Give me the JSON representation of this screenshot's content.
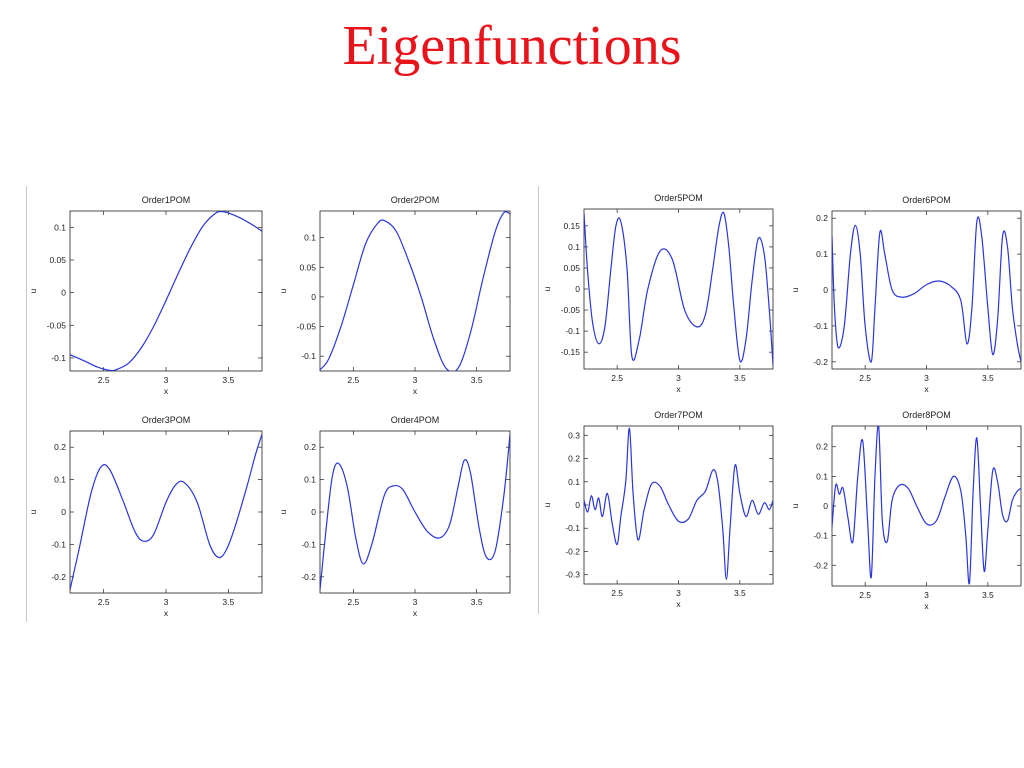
{
  "slide": {
    "title": "Eigenfunctions"
  },
  "chart_data": [
    {
      "type": "line",
      "title": "Order1POM",
      "xlabel": "x",
      "ylabel": "u",
      "xlim": [
        2.23,
        3.77
      ],
      "ylim": [
        -0.12,
        0.125
      ],
      "xticks": [
        2.5,
        3,
        3.5
      ],
      "xtick_labels": [
        "2.5",
        "3",
        "3.5"
      ],
      "yticks": [
        0.1,
        0.05,
        0,
        -0.05,
        -0.1
      ],
      "ytick_labels": [
        "0.1",
        "0.05",
        "0",
        "-0.05",
        "-0.1"
      ],
      "series": [
        {
          "color": "#2b36d9",
          "x": [
            2.23,
            2.35,
            2.45,
            2.55,
            2.6,
            2.7,
            2.8,
            2.9,
            3.0,
            3.1,
            3.2,
            3.3,
            3.4,
            3.45,
            3.5,
            3.6,
            3.7,
            3.77
          ],
          "y": [
            -0.095,
            -0.105,
            -0.114,
            -0.119,
            -0.118,
            -0.108,
            -0.085,
            -0.052,
            -0.012,
            0.03,
            0.07,
            0.103,
            0.122,
            0.124,
            0.122,
            0.114,
            0.103,
            0.094
          ]
        }
      ]
    },
    {
      "type": "line",
      "title": "Order2POM",
      "xlabel": "x",
      "ylabel": "u",
      "xlim": [
        2.23,
        3.77
      ],
      "ylim": [
        -0.125,
        0.145
      ],
      "xticks": [
        2.5,
        3,
        3.5
      ],
      "xtick_labels": [
        "2.5",
        "3",
        "3.5"
      ],
      "yticks": [
        0.1,
        0.05,
        0,
        -0.05,
        -0.1
      ],
      "ytick_labels": [
        "0.1",
        "0.05",
        "0",
        "-0.05",
        "-0.1"
      ],
      "series": [
        {
          "color": "#2b36d9",
          "x": [
            2.23,
            2.3,
            2.4,
            2.5,
            2.6,
            2.7,
            2.76,
            2.85,
            2.95,
            3.05,
            3.15,
            3.25,
            3.35,
            3.45,
            3.55,
            3.65,
            3.72,
            3.77
          ],
          "y": [
            -0.123,
            -0.105,
            -0.05,
            0.02,
            0.09,
            0.125,
            0.128,
            0.11,
            0.06,
            0.0,
            -0.07,
            -0.12,
            -0.12,
            -0.06,
            0.03,
            0.11,
            0.142,
            0.14
          ]
        }
      ]
    },
    {
      "type": "line",
      "title": "Order3POM",
      "xlabel": "x",
      "ylabel": "u",
      "xlim": [
        2.23,
        3.77
      ],
      "ylim": [
        -0.25,
        0.25
      ],
      "xticks": [
        2.5,
        3,
        3.5
      ],
      "xtick_labels": [
        "2.5",
        "3",
        "3.5"
      ],
      "yticks": [
        0.2,
        0.1,
        0,
        -0.1,
        -0.2
      ],
      "ytick_labels": [
        "0.2",
        "0.1",
        "0",
        "-0.1",
        "-0.2"
      ],
      "series": [
        {
          "color": "#2b36d9",
          "x": [
            2.23,
            2.3,
            2.4,
            2.48,
            2.55,
            2.65,
            2.75,
            2.82,
            2.9,
            3.0,
            3.08,
            3.15,
            3.25,
            3.35,
            3.42,
            3.48,
            3.55,
            3.65,
            3.72,
            3.77
          ],
          "y": [
            -0.24,
            -0.12,
            0.06,
            0.14,
            0.13,
            0.04,
            -0.06,
            -0.09,
            -0.07,
            0.03,
            0.085,
            0.09,
            0.03,
            -0.1,
            -0.14,
            -0.12,
            -0.05,
            0.08,
            0.18,
            0.24
          ]
        }
      ]
    },
    {
      "type": "line",
      "title": "Order4POM",
      "xlabel": "x",
      "ylabel": "u",
      "xlim": [
        2.23,
        3.77
      ],
      "ylim": [
        -0.25,
        0.25
      ],
      "xticks": [
        2.5,
        3,
        3.5
      ],
      "xtick_labels": [
        "2.5",
        "3",
        "3.5"
      ],
      "yticks": [
        0.2,
        0.1,
        0,
        -0.1,
        -0.2
      ],
      "ytick_labels": [
        "0.2",
        "0.1",
        "0",
        "-0.1",
        "-0.2"
      ],
      "series": [
        {
          "color": "#2b36d9",
          "x": [
            2.23,
            2.28,
            2.33,
            2.38,
            2.45,
            2.52,
            2.58,
            2.65,
            2.75,
            2.82,
            2.9,
            3.0,
            3.1,
            3.2,
            3.28,
            3.35,
            3.4,
            3.45,
            3.52,
            3.58,
            3.65,
            3.72,
            3.77
          ],
          "y": [
            -0.24,
            -0.05,
            0.11,
            0.15,
            0.08,
            -0.08,
            -0.16,
            -0.1,
            0.05,
            0.08,
            0.07,
            0.0,
            -0.06,
            -0.08,
            -0.04,
            0.08,
            0.16,
            0.12,
            -0.05,
            -0.14,
            -0.12,
            0.05,
            0.24
          ]
        }
      ]
    },
    {
      "type": "line",
      "title": "Order5POM",
      "xlabel": "x",
      "ylabel": "u",
      "xlim": [
        2.23,
        3.77
      ],
      "ylim": [
        -0.19,
        0.19
      ],
      "xticks": [
        2.5,
        3,
        3.5
      ],
      "xtick_labels": [
        "2.5",
        "3",
        "3.5"
      ],
      "yticks": [
        0.15,
        0.1,
        0.05,
        0,
        -0.05,
        -0.1,
        -0.15
      ],
      "ytick_labels": [
        "0.15",
        "0.1",
        "0.05",
        "0",
        "-0.05",
        "-0.1",
        "-0.15"
      ],
      "series": [
        {
          "color": "#2b36d9",
          "x": [
            2.23,
            2.26,
            2.3,
            2.35,
            2.4,
            2.45,
            2.49,
            2.53,
            2.58,
            2.62,
            2.68,
            2.75,
            2.85,
            2.95,
            3.05,
            3.15,
            3.22,
            3.28,
            3.33,
            3.37,
            3.41,
            3.45,
            3.5,
            3.55,
            3.6,
            3.65,
            3.7,
            3.74,
            3.77
          ],
          "y": [
            0.18,
            0.04,
            -0.08,
            -0.13,
            -0.09,
            0.05,
            0.15,
            0.16,
            0.05,
            -0.16,
            -0.12,
            0.0,
            0.09,
            0.07,
            -0.05,
            -0.09,
            -0.06,
            0.05,
            0.15,
            0.18,
            0.1,
            -0.04,
            -0.17,
            -0.12,
            0.02,
            0.12,
            0.08,
            -0.05,
            -0.18
          ]
        }
      ]
    },
    {
      "type": "line",
      "title": "Order6POM",
      "xlabel": "x",
      "ylabel": "u",
      "xlim": [
        2.23,
        3.77
      ],
      "ylim": [
        -0.22,
        0.22
      ],
      "xticks": [
        2.5,
        3,
        3.5
      ],
      "xtick_labels": [
        "2.5",
        "3",
        "3.5"
      ],
      "yticks": [
        0.2,
        0.1,
        0,
        -0.1,
        -0.2
      ],
      "ytick_labels": [
        "0.2",
        "0.1",
        "0",
        "-0.1",
        "-0.2"
      ],
      "series": [
        {
          "color": "#2b36d9",
          "x": [
            2.23,
            2.25,
            2.28,
            2.33,
            2.38,
            2.42,
            2.46,
            2.5,
            2.55,
            2.58,
            2.62,
            2.66,
            2.72,
            2.8,
            2.9,
            3.0,
            3.1,
            3.2,
            3.28,
            3.33,
            3.37,
            3.41,
            3.45,
            3.5,
            3.54,
            3.58,
            3.62,
            3.66,
            3.7,
            3.74,
            3.77
          ],
          "y": [
            0.15,
            -0.05,
            -0.16,
            -0.1,
            0.1,
            0.18,
            0.1,
            -0.1,
            -0.2,
            -0.05,
            0.16,
            0.1,
            0.0,
            -0.02,
            -0.01,
            0.015,
            0.025,
            0.01,
            -0.03,
            -0.15,
            -0.05,
            0.19,
            0.15,
            -0.05,
            -0.18,
            -0.08,
            0.15,
            0.12,
            -0.05,
            -0.15,
            -0.2
          ]
        }
      ]
    },
    {
      "type": "line",
      "title": "Order7POM",
      "xlabel": "x",
      "ylabel": "u",
      "xlim": [
        2.23,
        3.77
      ],
      "ylim": [
        -0.34,
        0.34
      ],
      "xticks": [
        2.5,
        3,
        3.5
      ],
      "xtick_labels": [
        "2.5",
        "3",
        "3.5"
      ],
      "yticks": [
        0.3,
        0.2,
        0.1,
        0,
        -0.1,
        -0.2,
        -0.3
      ],
      "ytick_labels": [
        "0.3",
        "0.2",
        "0.1",
        "0",
        "-0.1",
        "-0.2",
        "-0.3"
      ],
      "series": [
        {
          "color": "#2b36d9",
          "x": [
            2.23,
            2.26,
            2.29,
            2.32,
            2.35,
            2.38,
            2.42,
            2.46,
            2.5,
            2.53,
            2.57,
            2.6,
            2.63,
            2.67,
            2.72,
            2.78,
            2.85,
            2.92,
            3.0,
            3.08,
            3.15,
            3.22,
            3.28,
            3.32,
            3.36,
            3.39,
            3.42,
            3.46,
            3.5,
            3.55,
            3.6,
            3.65,
            3.7,
            3.74,
            3.77
          ],
          "y": [
            0.02,
            -0.03,
            0.04,
            -0.02,
            0.03,
            -0.05,
            0.05,
            -0.08,
            -0.17,
            -0.05,
            0.1,
            0.33,
            0.05,
            -0.15,
            -0.02,
            0.09,
            0.08,
            0.0,
            -0.07,
            -0.06,
            0.02,
            0.06,
            0.15,
            0.1,
            -0.1,
            -0.32,
            -0.1,
            0.17,
            0.05,
            -0.05,
            0.02,
            -0.04,
            0.01,
            -0.02,
            0.02
          ]
        }
      ]
    },
    {
      "type": "line",
      "title": "Order8POM",
      "xlabel": "x",
      "ylabel": "u",
      "xlim": [
        2.23,
        3.77
      ],
      "ylim": [
        -0.27,
        0.27
      ],
      "xticks": [
        2.5,
        3,
        3.5
      ],
      "xtick_labels": [
        "2.5",
        "3",
        "3.5"
      ],
      "yticks": [
        0.2,
        0.1,
        0,
        -0.1,
        -0.2
      ],
      "ytick_labels": [
        "0.2",
        "0.1",
        "0",
        "-0.1",
        "-0.2"
      ],
      "series": [
        {
          "color": "#2b36d9",
          "x": [
            2.23,
            2.26,
            2.29,
            2.32,
            2.36,
            2.4,
            2.44,
            2.48,
            2.52,
            2.55,
            2.58,
            2.61,
            2.64,
            2.68,
            2.72,
            2.78,
            2.85,
            2.92,
            3.0,
            3.08,
            3.15,
            3.22,
            3.28,
            3.32,
            3.35,
            3.38,
            3.41,
            3.44,
            3.47,
            3.5,
            3.54,
            3.58,
            3.62,
            3.66,
            3.7,
            3.74,
            3.77
          ],
          "y": [
            -0.07,
            0.07,
            0.04,
            0.06,
            -0.04,
            -0.12,
            0.1,
            0.22,
            -0.05,
            -0.24,
            0.1,
            0.27,
            -0.05,
            -0.12,
            0.02,
            0.07,
            0.06,
            0.0,
            -0.06,
            -0.05,
            0.03,
            0.1,
            0.05,
            -0.1,
            -0.26,
            0.05,
            0.23,
            0.0,
            -0.22,
            -0.08,
            0.12,
            0.08,
            -0.03,
            -0.05,
            0.02,
            0.05,
            0.06
          ]
        }
      ]
    }
  ]
}
